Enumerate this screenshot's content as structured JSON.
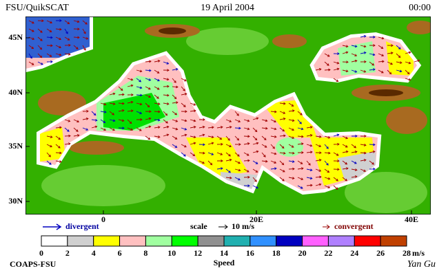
{
  "header": {
    "left": "FSU/QuikSCAT",
    "center": "19 April 2004",
    "right": "00:00"
  },
  "map": {
    "lat_labels": [
      "45N",
      "40N",
      "35N",
      "30N"
    ],
    "lon_labels": [
      "0",
      "20E",
      "40E"
    ]
  },
  "legend": {
    "divergent": "divergent",
    "scale": "scale",
    "scale_value": "10 m/s",
    "convergent": "convergent"
  },
  "colorbar": {
    "colors": [
      "#ffffff",
      "#d0d0d0",
      "#ffff00",
      "#ffc0c0",
      "#a0ffa0",
      "#00ff00",
      "#909090",
      "#20b0b0",
      "#3090ff",
      "#0000c0",
      "#ff60ff",
      "#b080ff",
      "#ff0000",
      "#c04000"
    ],
    "end_color": "#000000",
    "labels": [
      "0",
      "2",
      "4",
      "6",
      "8",
      "10",
      "12",
      "14",
      "16",
      "18",
      "20",
      "22",
      "24",
      "26",
      "28"
    ],
    "unit": "m/s",
    "title": "Speed"
  },
  "footer": {
    "left": "COAPS-FSU",
    "right": "Yan Gu"
  }
}
